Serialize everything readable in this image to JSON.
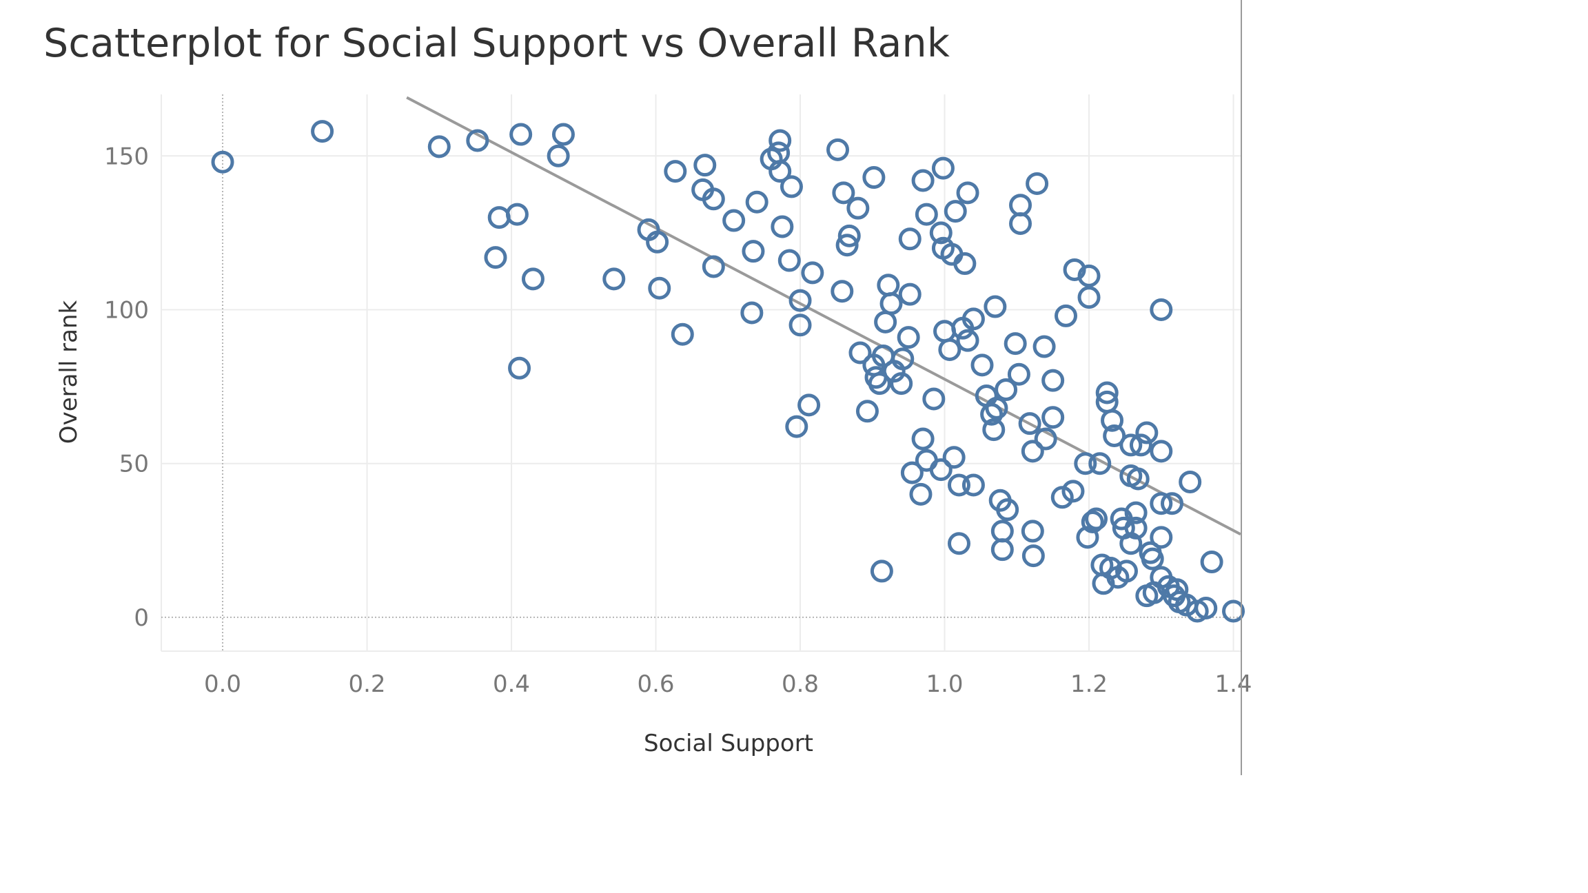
{
  "chart_data": {
    "type": "scatter",
    "title": "Scatterplot for Social Support vs Overall Rank",
    "xlabel": "Social Support",
    "ylabel": "Overall rank",
    "xlim": [
      -0.085,
      1.41
    ],
    "ylim": [
      -11,
      170
    ],
    "x_ticks": [
      0.0,
      0.2,
      0.4,
      0.6,
      0.8,
      1.0,
      1.2,
      1.4
    ],
    "x_tick_labels": [
      "0.0",
      "0.2",
      "0.4",
      "0.6",
      "0.8",
      "1.0",
      "1.2",
      "1.4"
    ],
    "y_ticks": [
      0,
      50,
      100,
      150
    ],
    "y_tick_labels": [
      "0",
      "50",
      "100",
      "150"
    ],
    "grid": true,
    "marker": "hollow-circle",
    "color": "#4e79a7",
    "trend_line": {
      "color": "#9a9a9a",
      "x": [
        0.255,
        1.41
      ],
      "y": [
        169,
        27
      ]
    },
    "points": [
      [
        0.0,
        148
      ],
      [
        0.138,
        158
      ],
      [
        0.3,
        153
      ],
      [
        0.353,
        155
      ],
      [
        0.413,
        157
      ],
      [
        0.472,
        157
      ],
      [
        0.465,
        150
      ],
      [
        0.383,
        130
      ],
      [
        0.408,
        131
      ],
      [
        0.378,
        117
      ],
      [
        0.43,
        110
      ],
      [
        0.411,
        81
      ],
      [
        0.542,
        110
      ],
      [
        0.59,
        126
      ],
      [
        0.602,
        122
      ],
      [
        0.605,
        107
      ],
      [
        0.637,
        92
      ],
      [
        0.627,
        145
      ],
      [
        0.668,
        147
      ],
      [
        0.665,
        139
      ],
      [
        0.68,
        136
      ],
      [
        0.68,
        114
      ],
      [
        0.708,
        129
      ],
      [
        0.74,
        135
      ],
      [
        0.735,
        119
      ],
      [
        0.733,
        99
      ],
      [
        0.76,
        149
      ],
      [
        0.77,
        151
      ],
      [
        0.772,
        155
      ],
      [
        0.772,
        145
      ],
      [
        0.788,
        140
      ],
      [
        0.775,
        127
      ],
      [
        0.785,
        116
      ],
      [
        0.817,
        112
      ],
      [
        0.8,
        103
      ],
      [
        0.8,
        95
      ],
      [
        0.812,
        69
      ],
      [
        0.795,
        62
      ],
      [
        0.852,
        152
      ],
      [
        0.86,
        138
      ],
      [
        0.88,
        133
      ],
      [
        0.868,
        124
      ],
      [
        0.865,
        121
      ],
      [
        0.858,
        106
      ],
      [
        0.902,
        143
      ],
      [
        0.883,
        86
      ],
      [
        0.893,
        67
      ],
      [
        0.902,
        82
      ],
      [
        0.905,
        78
      ],
      [
        0.91,
        76
      ],
      [
        0.913,
        15
      ],
      [
        0.915,
        85
      ],
      [
        0.918,
        96
      ],
      [
        0.922,
        108
      ],
      [
        0.926,
        102
      ],
      [
        0.93,
        80
      ],
      [
        0.942,
        84
      ],
      [
        0.94,
        76
      ],
      [
        0.952,
        123
      ],
      [
        0.952,
        105
      ],
      [
        0.95,
        91
      ],
      [
        0.955,
        47
      ],
      [
        0.97,
        142
      ],
      [
        0.975,
        131
      ],
      [
        0.97,
        58
      ],
      [
        0.967,
        40
      ],
      [
        0.975,
        51
      ],
      [
        0.985,
        71
      ],
      [
        0.998,
        146
      ],
      [
        0.995,
        125
      ],
      [
        0.998,
        120
      ],
      [
        1.0,
        93
      ],
      [
        1.007,
        87
      ],
      [
        1.01,
        118
      ],
      [
        1.028,
        115
      ],
      [
        1.015,
        132
      ],
      [
        1.032,
        138
      ],
      [
        1.025,
        94
      ],
      [
        1.032,
        90
      ],
      [
        1.04,
        97
      ],
      [
        0.995,
        48
      ],
      [
        1.013,
        52
      ],
      [
        1.02,
        43
      ],
      [
        1.02,
        24
      ],
      [
        1.04,
        43
      ],
      [
        1.052,
        82
      ],
      [
        1.058,
        72
      ],
      [
        1.065,
        66
      ],
      [
        1.068,
        61
      ],
      [
        1.072,
        68
      ],
      [
        1.07,
        101
      ],
      [
        1.077,
        38
      ],
      [
        1.085,
        74
      ],
      [
        1.087,
        35
      ],
      [
        1.08,
        28
      ],
      [
        1.08,
        22
      ],
      [
        1.098,
        89
      ],
      [
        1.103,
        79
      ],
      [
        1.105,
        134
      ],
      [
        1.105,
        128
      ],
      [
        1.118,
        63
      ],
      [
        1.122,
        54
      ],
      [
        1.128,
        141
      ],
      [
        1.122,
        28
      ],
      [
        1.123,
        20
      ],
      [
        1.138,
        88
      ],
      [
        1.14,
        58
      ],
      [
        1.15,
        65
      ],
      [
        1.15,
        77
      ],
      [
        1.168,
        98
      ],
      [
        1.163,
        39
      ],
      [
        1.18,
        113
      ],
      [
        1.2,
        111
      ],
      [
        1.2,
        104
      ],
      [
        1.178,
        41
      ],
      [
        1.195,
        50
      ],
      [
        1.215,
        50
      ],
      [
        1.198,
        26
      ],
      [
        1.205,
        31
      ],
      [
        1.21,
        32
      ],
      [
        1.218,
        17
      ],
      [
        1.22,
        11
      ],
      [
        1.225,
        73
      ],
      [
        1.225,
        70
      ],
      [
        1.232,
        64
      ],
      [
        1.235,
        59
      ],
      [
        1.23,
        16
      ],
      [
        1.24,
        13
      ],
      [
        1.245,
        32
      ],
      [
        1.248,
        29
      ],
      [
        1.252,
        15
      ],
      [
        1.258,
        56
      ],
      [
        1.258,
        46
      ],
      [
        1.258,
        24
      ],
      [
        1.265,
        34
      ],
      [
        1.265,
        29
      ],
      [
        1.272,
        56
      ],
      [
        1.268,
        45
      ],
      [
        1.28,
        60
      ],
      [
        1.285,
        21
      ],
      [
        1.288,
        19
      ],
      [
        1.28,
        7
      ],
      [
        1.29,
        8
      ],
      [
        1.3,
        54
      ],
      [
        1.3,
        37
      ],
      [
        1.3,
        26
      ],
      [
        1.3,
        13
      ],
      [
        1.31,
        10
      ],
      [
        1.315,
        37
      ],
      [
        1.318,
        7
      ],
      [
        1.322,
        9
      ],
      [
        1.325,
        5
      ],
      [
        1.335,
        4
      ],
      [
        1.34,
        44
      ],
      [
        1.35,
        2
      ],
      [
        1.362,
        3
      ],
      [
        1.37,
        18
      ],
      [
        1.4,
        2
      ],
      [
        1.3,
        100
      ]
    ]
  }
}
